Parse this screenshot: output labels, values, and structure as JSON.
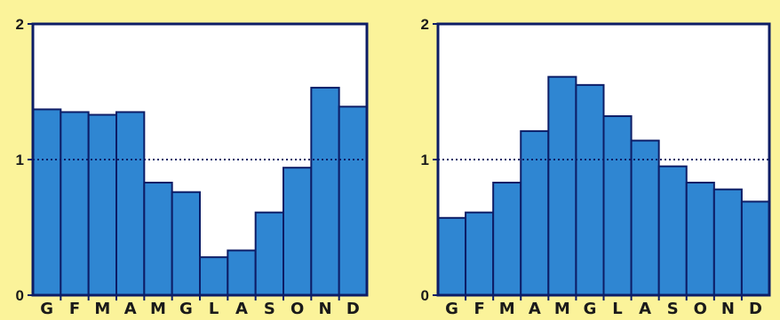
{
  "chart_data": [
    {
      "type": "bar",
      "categories": [
        "G",
        "F",
        "M",
        "A",
        "M",
        "G",
        "L",
        "A",
        "S",
        "O",
        "N",
        "D"
      ],
      "values": [
        1.37,
        1.35,
        1.33,
        1.35,
        0.83,
        0.76,
        0.28,
        0.33,
        0.61,
        0.94,
        1.53,
        1.39
      ],
      "ylim": [
        0,
        2
      ],
      "yticks": [
        "0",
        "1",
        "2"
      ],
      "reference_line": 1,
      "title": "",
      "xlabel": "",
      "ylabel": "",
      "bar_color": "#2f86d2"
    },
    {
      "type": "bar",
      "categories": [
        "G",
        "F",
        "M",
        "A",
        "M",
        "G",
        "L",
        "A",
        "S",
        "O",
        "N",
        "D"
      ],
      "values": [
        0.57,
        0.61,
        0.83,
        1.21,
        1.61,
        1.55,
        1.32,
        1.14,
        0.95,
        0.83,
        0.78,
        0.69
      ],
      "ylim": [
        0,
        2
      ],
      "yticks": [
        "0",
        "1",
        "2"
      ],
      "reference_line": 1,
      "title": "",
      "xlabel": "",
      "ylabel": "",
      "bar_color": "#2f86d2"
    }
  ]
}
